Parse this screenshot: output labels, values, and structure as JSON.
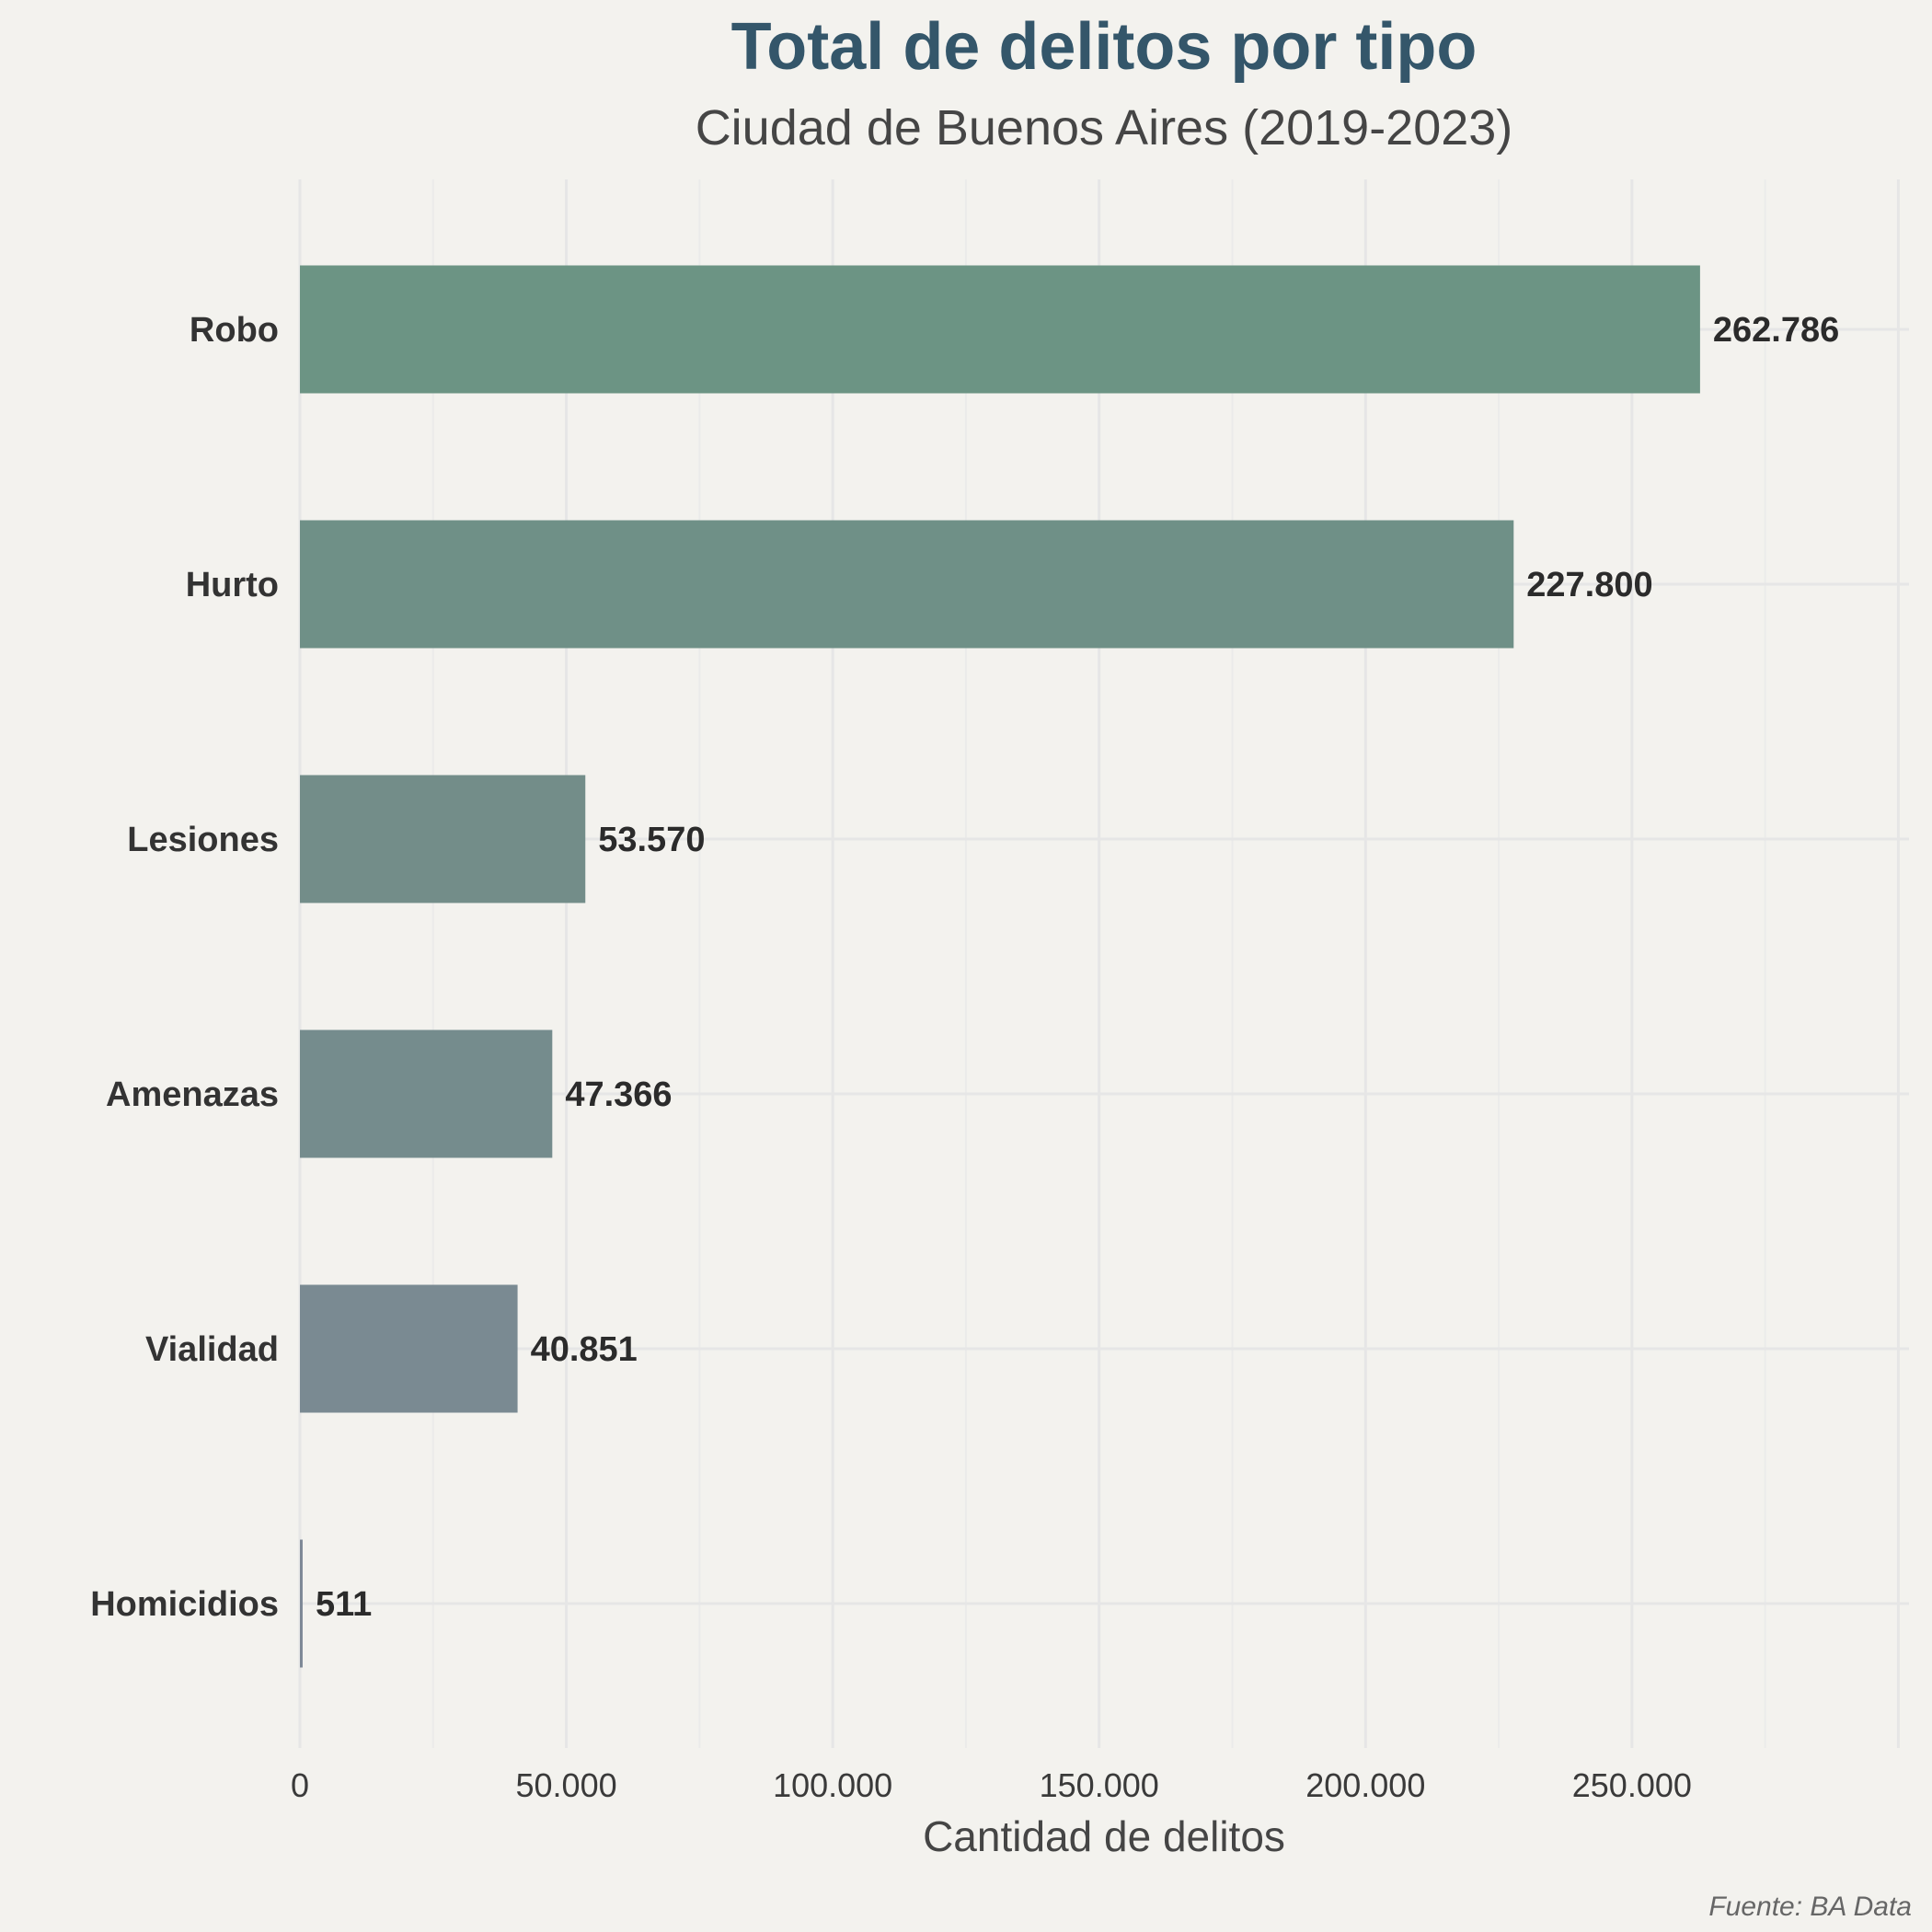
{
  "chart_data": {
    "type": "bar",
    "orientation": "horizontal",
    "title": "Total de delitos por tipo",
    "subtitle": "Ciudad de Buenos Aires (2019-2023)",
    "xlabel": "Cantidad de delitos",
    "ylabel": "",
    "source": "Fuente: BA Data",
    "categories": [
      "Robo",
      "Hurto",
      "Lesiones",
      "Amenazas",
      "Vialidad",
      "Homicidios"
    ],
    "values": [
      262786,
      227800,
      53570,
      47366,
      40851,
      511
    ],
    "value_labels": [
      "262.786",
      "227.800",
      "53.570",
      "47.366",
      "40.851",
      "511"
    ],
    "bar_colors": [
      "#6c9484",
      "#6f9087",
      "#738d89",
      "#758c8d",
      "#7a8a92",
      "#7d8896"
    ],
    "xlim": [
      0,
      302000
    ],
    "x_ticks": [
      0,
      50000,
      100000,
      150000,
      200000,
      250000
    ],
    "x_tick_labels": [
      "0",
      "50.000",
      "100.000",
      "150.000",
      "200.000",
      "250.000"
    ],
    "grid": true,
    "legend": "none"
  }
}
